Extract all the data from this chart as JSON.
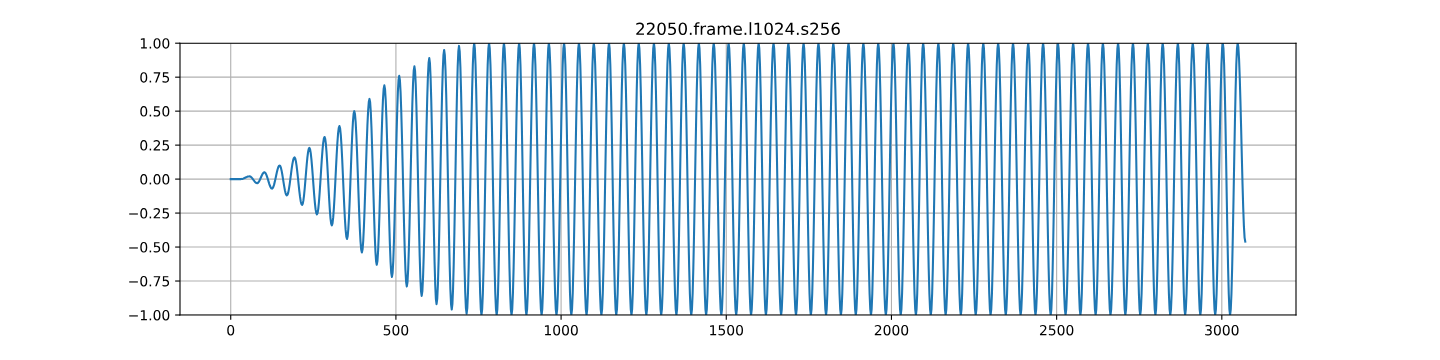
{
  "chart_data": {
    "type": "line",
    "title": "22050.frame.l1024.s256",
    "x": [
      0,
      30,
      57,
      80,
      102,
      125,
      148,
      170,
      193,
      216,
      238,
      261,
      284,
      306,
      329,
      352,
      374,
      397,
      420,
      442,
      465,
      488,
      510,
      533,
      556,
      578,
      601,
      623,
      646,
      669,
      691,
      714,
      737,
      759,
      782,
      805,
      827,
      850,
      873,
      895,
      918,
      941,
      963,
      986,
      1009,
      1031,
      1054,
      1077,
      1099,
      1122,
      1145,
      1167,
      1190,
      1213,
      1235,
      1258,
      1281,
      1303,
      1326,
      1349,
      1371,
      1394,
      1417,
      1439,
      1462,
      1485,
      1507,
      1530,
      1553,
      1575,
      1598,
      1620,
      1643,
      1666,
      1688,
      1711,
      1734,
      1756,
      1779,
      1802,
      1824,
      1847,
      1870,
      1892,
      1915,
      1938,
      1960,
      1983,
      2006,
      2028,
      2051,
      2074,
      2096,
      2119,
      2142,
      2164,
      2187,
      2210,
      2232,
      2255,
      2278,
      2300,
      2323,
      2346,
      2368,
      2391,
      2414,
      2436,
      2459,
      2482,
      2504,
      2527,
      2550,
      2572,
      2595,
      2618,
      2640,
      2663,
      2686,
      2708,
      2731,
      2753,
      2776,
      2799,
      2821,
      2844,
      2867,
      2889,
      2912,
      2935,
      2957,
      2980,
      3003,
      3025,
      3048,
      3071
    ],
    "series": [
      {
        "color": "#1f77b4",
        "values": [
          0,
          0,
          0.02,
          -0.03,
          0.05,
          -0.07,
          0.1,
          -0.12,
          0.16,
          -0.19,
          0.23,
          -0.26,
          0.31,
          -0.34,
          0.39,
          -0.44,
          0.5,
          -0.54,
          0.59,
          -0.63,
          0.69,
          -0.72,
          0.76,
          -0.79,
          0.83,
          -0.86,
          0.89,
          -0.92,
          0.95,
          -0.96,
          0.98,
          -0.99,
          1,
          -1,
          1,
          -1,
          1,
          -1,
          1,
          -1,
          1,
          -1,
          1,
          -1,
          1,
          -1,
          1,
          -1,
          1,
          -1,
          1,
          -1,
          1,
          -1,
          1,
          -1,
          1,
          -1,
          1,
          -1,
          1,
          -1,
          1,
          -1,
          1,
          -1,
          1,
          -1,
          1,
          -1,
          1,
          -1,
          1,
          -1,
          1,
          -1,
          1,
          -1,
          1,
          -1,
          1,
          -1,
          1,
          -1,
          1,
          -1,
          1,
          -1,
          1,
          -1,
          1,
          -1,
          1,
          -1,
          1,
          -1,
          1,
          -1,
          1,
          -1,
          1,
          -1,
          1,
          -1,
          1,
          -1,
          1,
          -1,
          1,
          -1,
          1,
          -1,
          1,
          -1,
          1,
          -1,
          1,
          -1,
          1,
          -1,
          1,
          -1,
          1,
          -1,
          1,
          -1,
          1,
          -1,
          1,
          -1,
          1,
          -1,
          1,
          -1,
          1,
          -0.46
        ]
      }
    ],
    "xlim": [
      -153.55,
      3224.55
    ],
    "ylim": [
      -1,
      1
    ],
    "xticks": [
      0,
      500,
      1000,
      1500,
      2000,
      2500,
      3000
    ],
    "yticks": [
      {
        "value": -1,
        "label": "−1.00"
      },
      {
        "value": -0.75,
        "label": "−0.75"
      },
      {
        "value": -0.5,
        "label": "−0.50"
      },
      {
        "value": -0.25,
        "label": "−0.25"
      },
      {
        "value": 0,
        "label": "0.00"
      },
      {
        "value": 0.25,
        "label": "0.25"
      },
      {
        "value": 0.5,
        "label": "0.50"
      },
      {
        "value": 0.75,
        "label": "0.75"
      },
      {
        "value": 1,
        "label": "1.00"
      }
    ],
    "grid": true,
    "line_style": "solid"
  }
}
